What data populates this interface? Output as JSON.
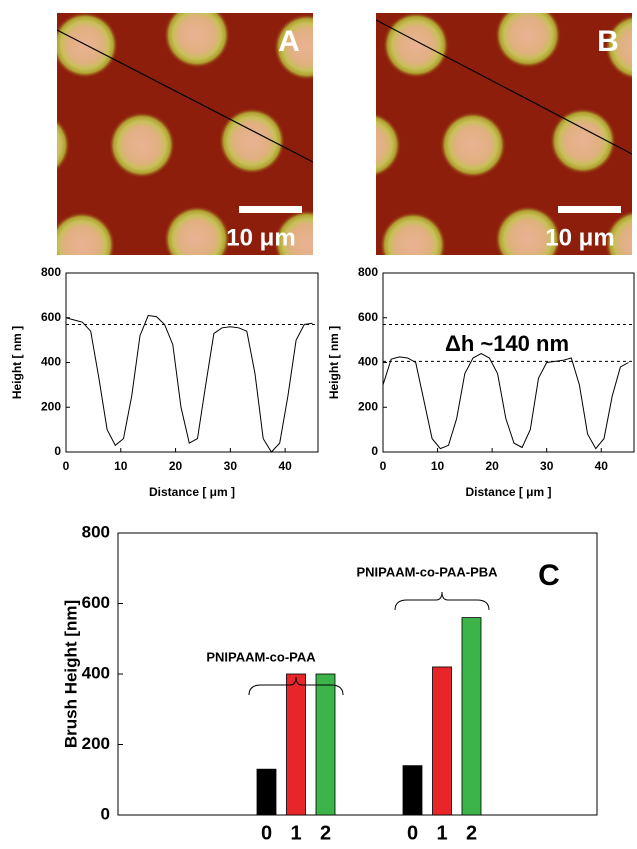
{
  "images": [
    {
      "label": "A",
      "scale_bar": "10 μm"
    },
    {
      "label": "B",
      "scale_bar": "10 μm"
    }
  ],
  "chart_data": [
    {
      "type": "line",
      "xlabel": "Distance  [ μm ]",
      "ylabel": "Height  [ nm ]",
      "x": [
        0,
        1.5,
        3,
        4.5,
        6,
        7.5,
        9,
        10.5,
        12,
        13.5,
        15,
        16.5,
        18,
        19.5,
        21,
        22.5,
        24,
        25.5,
        27,
        28.5,
        30,
        31.5,
        33,
        34.5,
        36,
        37.5,
        39,
        40.5,
        42,
        43.5,
        45
      ],
      "values": [
        600,
        590,
        580,
        540,
        330,
        100,
        30,
        60,
        250,
        520,
        610,
        605,
        570,
        480,
        200,
        40,
        60,
        300,
        530,
        555,
        560,
        555,
        540,
        350,
        60,
        0,
        40,
        250,
        500,
        570,
        575
      ],
      "xlim": [
        0,
        46
      ],
      "xticks": [
        0,
        10,
        20,
        30,
        40
      ],
      "ylim": [
        0,
        800
      ],
      "yticks": [
        0,
        200,
        400,
        600,
        800
      ],
      "reference_lines": [
        570
      ]
    },
    {
      "type": "line",
      "xlabel": "Distance  [ μm ]",
      "ylabel": "Height  [ nm ]",
      "x": [
        0,
        1.5,
        3,
        4.5,
        6,
        7.5,
        9,
        10.5,
        12,
        13.5,
        15,
        16.5,
        18,
        19.5,
        21,
        22.5,
        24,
        25.5,
        27,
        28.5,
        30,
        31.5,
        33,
        34.5,
        36,
        37.5,
        39,
        40.5,
        42,
        43.5,
        45
      ],
      "values": [
        300,
        415,
        425,
        420,
        400,
        230,
        60,
        15,
        30,
        150,
        350,
        420,
        440,
        420,
        350,
        150,
        40,
        20,
        100,
        330,
        400,
        405,
        410,
        420,
        300,
        80,
        15,
        60,
        250,
        380,
        400
      ],
      "xlim": [
        0,
        46
      ],
      "xticks": [
        0,
        10,
        20,
        30,
        40
      ],
      "ylim": [
        0,
        800
      ],
      "yticks": [
        0,
        200,
        400,
        600,
        800
      ],
      "reference_lines": [
        570,
        405
      ],
      "annotation": "Δh ~140 nm"
    },
    {
      "type": "bar",
      "label": "C",
      "ylabel": "Brush Height [nm]",
      "colors": [
        "#000000",
        "#e8262a",
        "#3cb44a"
      ],
      "groups": [
        {
          "name": "PNIPAAM-co-PAA",
          "categories": [
            "0",
            "1",
            "2"
          ],
          "values": [
            130,
            400,
            400
          ]
        },
        {
          "name": "PNIPAAM-co-PAA-PBA",
          "categories": [
            "0",
            "1",
            "2"
          ],
          "values": [
            140,
            420,
            560
          ]
        }
      ],
      "ylim": [
        0,
        800
      ],
      "yticks": [
        0,
        200,
        400,
        600,
        800
      ]
    }
  ]
}
